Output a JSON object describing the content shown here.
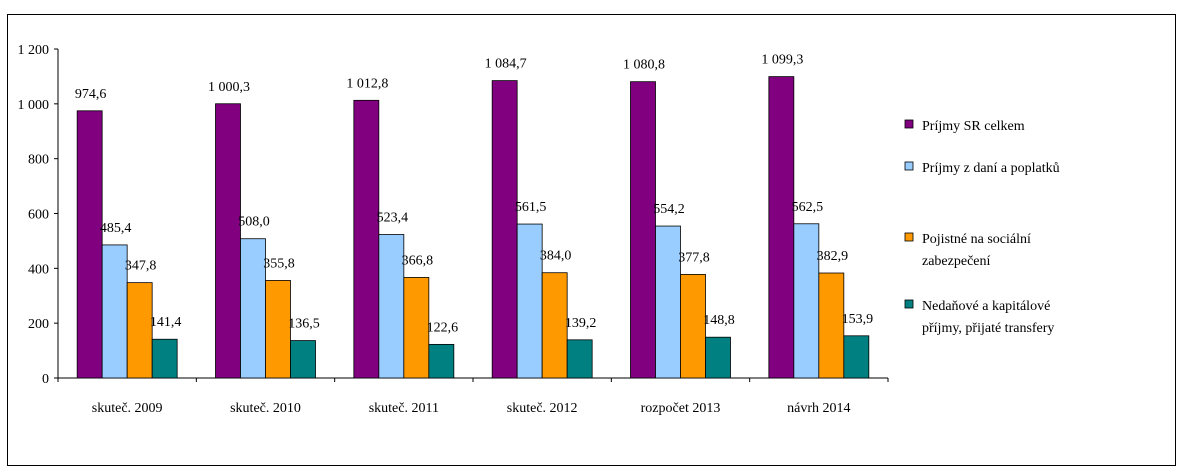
{
  "chart_data": {
    "type": "bar",
    "categories": [
      "skuteč. 2009",
      "skuteč. 2010",
      "skuteč. 2011",
      "skuteč. 2012",
      "rozpočet 2013",
      "návrh 2014"
    ],
    "series": [
      {
        "name": "Príjmy SR celkem",
        "color": "#800080",
        "values": [
          974.6,
          1000.3,
          1012.8,
          1084.7,
          1080.8,
          1099.3
        ],
        "labels": [
          "974,6",
          "1 000,3",
          "1 012,8",
          "1 084,7",
          "1 080,8",
          "1 099,3"
        ]
      },
      {
        "name": "Príjmy z daní a poplatků",
        "color": "#99CCFF",
        "values": [
          485.4,
          508.0,
          523.4,
          561.5,
          554.2,
          562.5
        ],
        "labels": [
          "485,4",
          "508,0",
          "523,4",
          "561,5",
          "554,2",
          "562,5"
        ]
      },
      {
        "name": "Pojistné na sociální zabezpečení",
        "color": "#FF9900",
        "values": [
          347.8,
          355.8,
          366.8,
          384.0,
          377.8,
          382.9
        ],
        "labels": [
          "347,8",
          "355,8",
          "366,8",
          "384,0",
          "377,8",
          "382,9"
        ]
      },
      {
        "name": "Nedaňové a kapitálové příjmy, přijaté transfery",
        "color": "#008080",
        "values": [
          141.4,
          136.5,
          122.6,
          139.2,
          148.8,
          153.9
        ],
        "labels": [
          "141,4",
          "136,5",
          "122,6",
          "139,2",
          "148,8",
          "153,9"
        ]
      }
    ],
    "legend": {
      "position": "right",
      "entries": [
        [
          "Príjmy SR celkem"
        ],
        [
          "Príjmy z daní a poplatků"
        ],
        [
          "Pojistné na sociální",
          "zabezpečení"
        ],
        [
          "Nedaňové a kapitálové",
          "příjmy, přijaté transfery"
        ]
      ]
    },
    "yticks": [
      "0",
      "200",
      "400",
      "600",
      "800",
      "1 000",
      "1 200"
    ],
    "ylim": [
      0,
      1200
    ],
    "grid": false
  }
}
